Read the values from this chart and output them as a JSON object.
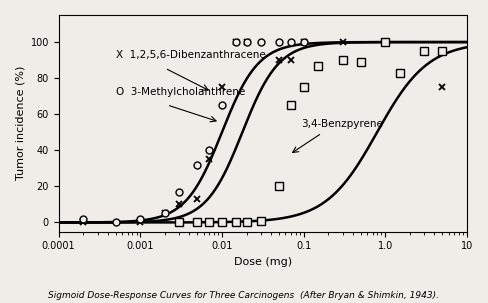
{
  "title": "Sigmoid Dose-Response Curves for Three Carcinogens  (After Bryan & Shimkin, 1943).",
  "xlabel": "Dose (mg)",
  "ylabel": "Tumor incidence (%)",
  "xlim": [
    0.0001,
    10
  ],
  "ylim": [
    -5,
    115
  ],
  "yticks": [
    0,
    20,
    40,
    60,
    80,
    100
  ],
  "background_color": "#f0ede8",
  "curve_params": [
    {
      "ec50_log": -2.0,
      "slope": 4.5
    },
    {
      "ec50_log": -1.75,
      "slope": 4.5
    },
    {
      "ec50_log": -0.1,
      "slope": 3.2
    }
  ],
  "dibenz_x": [
    0.0002,
    0.001,
    0.002,
    0.003,
    0.005,
    0.007,
    0.01,
    0.015,
    0.02,
    0.05,
    0.07,
    0.1,
    0.3,
    1.0,
    5.0
  ],
  "dibenz_y": [
    0,
    0,
    5,
    10,
    13,
    35,
    75,
    100,
    100,
    90,
    90,
    100,
    100,
    100,
    75
  ],
  "methyl_x": [
    0.0002,
    0.0005,
    0.001,
    0.002,
    0.003,
    0.005,
    0.007,
    0.01,
    0.015,
    0.02,
    0.03,
    0.05,
    0.07,
    0.1
  ],
  "methyl_y": [
    2,
    0,
    2,
    5,
    17,
    32,
    40,
    65,
    100,
    100,
    100,
    100,
    100,
    100
  ],
  "benzpyrene_x": [
    0.003,
    0.005,
    0.007,
    0.01,
    0.015,
    0.02,
    0.03,
    0.05,
    0.07,
    0.1,
    0.15,
    0.3,
    0.5,
    1.0,
    1.5,
    3.0,
    5.0
  ],
  "benzpyrene_y": [
    0,
    0,
    0,
    0,
    0,
    0,
    1,
    20,
    65,
    75,
    87,
    90,
    89,
    100,
    83,
    95,
    95
  ],
  "xtick_positions": [
    0.0001,
    0.001,
    0.01,
    0.1,
    1.0,
    10.0
  ],
  "xtick_labels": [
    "0.0001",
    "0.001",
    "0.01",
    "0.1",
    "1.0",
    "10"
  ]
}
